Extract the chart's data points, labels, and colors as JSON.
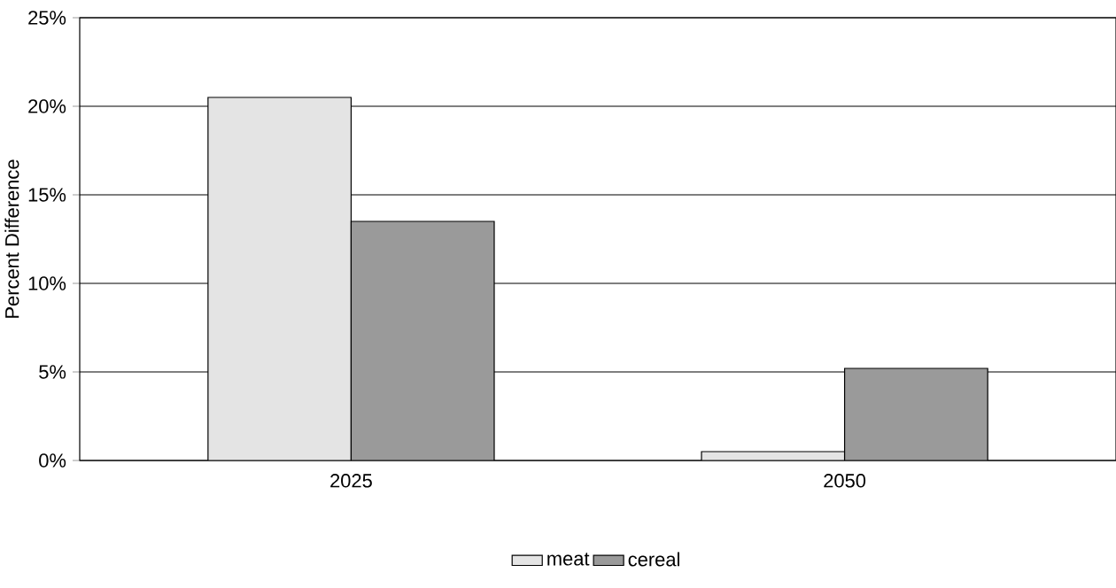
{
  "chart_data": {
    "type": "bar",
    "ylabel": "Percent Difference",
    "categories": [
      "2025",
      "2050"
    ],
    "series": [
      {
        "name": "meat",
        "color": "#e4e4e4",
        "values": [
          20.5,
          0.5
        ]
      },
      {
        "name": "cereal",
        "color": "#9a9a9a",
        "values": [
          13.5,
          5.2
        ]
      }
    ],
    "ylim": [
      0,
      25
    ],
    "yticks": [
      {
        "value": 0,
        "label": "0%"
      },
      {
        "value": 5,
        "label": "5%"
      },
      {
        "value": 10,
        "label": "10%"
      },
      {
        "value": 15,
        "label": "15%"
      },
      {
        "value": 20,
        "label": "20%"
      },
      {
        "value": 25,
        "label": "25%"
      }
    ],
    "grid": "y",
    "legend": "bottom"
  }
}
